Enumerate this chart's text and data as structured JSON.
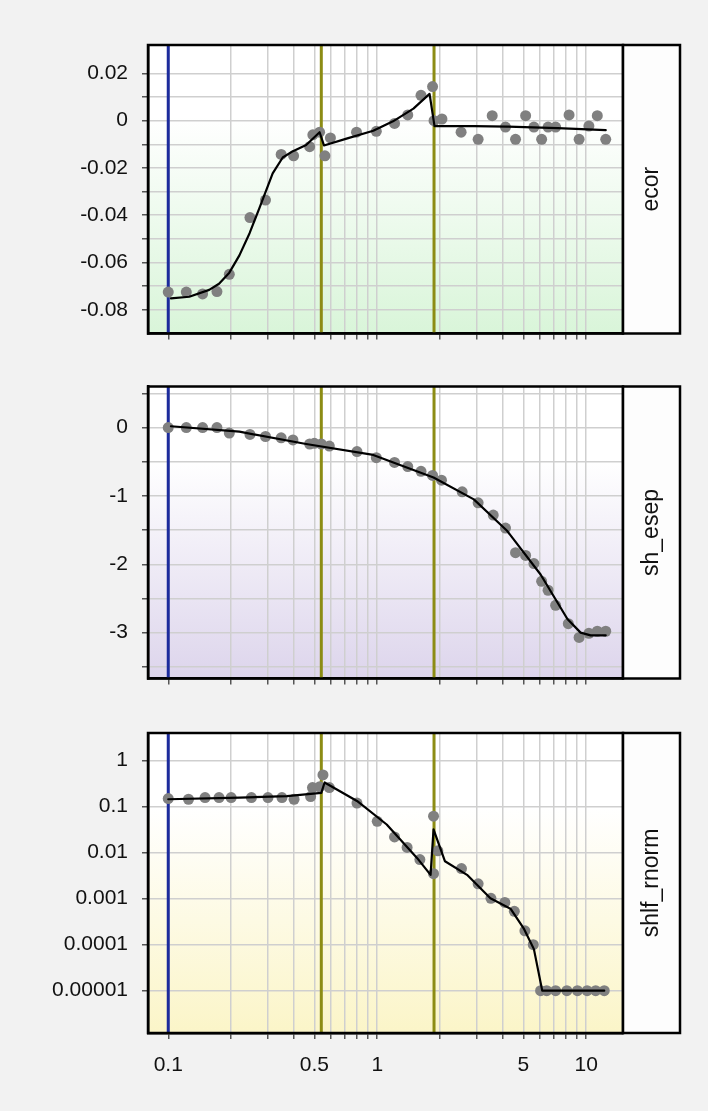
{
  "chart_data": [
    {
      "type": "scatter",
      "y2label": "ecor",
      "log": "x",
      "grid": true,
      "legend": false,
      "tick_labels": "y",
      "xlim": [
        0.08,
        15
      ],
      "xticks": [
        0.1,
        {
          "value": 0.2,
          "label": null
        },
        {
          "value": 0.3,
          "label": null
        },
        {
          "value": 0.4,
          "label": null
        },
        0.5,
        {
          "value": 0.6,
          "label": null
        },
        {
          "value": 0.7,
          "label": null
        },
        {
          "value": 0.8,
          "label": null
        },
        {
          "value": 0.9,
          "label": null
        },
        1,
        {
          "value": 2,
          "label": null
        },
        {
          "value": 3,
          "label": null
        },
        {
          "value": 4,
          "label": null
        },
        5,
        {
          "value": 6,
          "label": null
        },
        {
          "value": 7,
          "label": null
        },
        {
          "value": 8,
          "label": null
        },
        {
          "value": 9,
          "label": null
        },
        10
      ],
      "ylim": [
        -0.09,
        0.032
      ],
      "yticks": [
        0.02,
        {
          "value": 0.01,
          "label": null
        },
        0,
        {
          "value": -0.01,
          "label": null
        },
        -0.02,
        {
          "value": -0.03,
          "label": null
        },
        -0.04,
        {
          "value": -0.05,
          "label": null
        },
        -0.06,
        {
          "value": -0.07,
          "label": null
        },
        -0.08
      ],
      "ref_lines": [
        {
          "axis": "x",
          "value": 0.1,
          "color": "#1c2b9c"
        },
        {
          "axis": "x",
          "value": 0.54,
          "color": "#8c8c14"
        },
        {
          "axis": "x",
          "value": 1.87,
          "color": "#8c8c14"
        }
      ],
      "series": [
        {
          "type": "scatter",
          "color": "#808080",
          "marker": "circle",
          "x": [
            0.1,
            0.122,
            0.146,
            0.171,
            0.196,
            0.246,
            0.292,
            0.347,
            0.398,
            0.475,
            0.492,
            0.53,
            0.562,
            0.597,
            0.796,
            0.99,
            1.21,
            1.4,
            1.62,
            1.84,
            1.87,
            2.04,
            2.52,
            3.04,
            3.55,
            4.11,
            4.59,
            5.13,
            5.62,
            6.12,
            6.57,
            7.14,
            8.28,
            9.25,
            10.3,
            11.3,
            12.4
          ],
          "values": [
            -0.0725,
            -0.0725,
            -0.0733,
            -0.0723,
            -0.065,
            -0.041,
            -0.0336,
            -0.0143,
            -0.0149,
            -0.011,
            -0.006,
            -0.0049,
            -0.0149,
            -0.0073,
            -0.0049,
            -0.0045,
            -0.0012,
            0.0024,
            0.0107,
            0.0144,
            0,
            0.0007,
            -0.0049,
            -0.0079,
            0.0021,
            -0.0027,
            -0.0079,
            0.0021,
            -0.0027,
            -0.0079,
            -0.0027,
            -0.0027,
            0.0024,
            -0.0079,
            -0.0023,
            0.0021,
            -0.0079
          ]
        },
        {
          "type": "line",
          "color": "#000000",
          "marker": "none",
          "x": [
            0.103,
            0.126,
            0.157,
            0.175,
            0.196,
            0.219,
            0.245,
            0.273,
            0.316,
            0.353,
            0.395,
            0.457,
            0.53,
            0.556,
            0.713,
            0.957,
            1.19,
            1.49,
            1.78,
            1.88,
            2.9,
            4.18,
            7.3,
            12.4
          ],
          "values": [
            -0.0752,
            -0.0745,
            -0.0716,
            -0.069,
            -0.0643,
            -0.057,
            -0.0476,
            -0.037,
            -0.0223,
            -0.0156,
            -0.0129,
            -0.0103,
            -0.0049,
            -0.0105,
            -0.0076,
            -0.0043,
            -0.0003,
            0.0051,
            0.0113,
            -0.0023,
            -0.0023,
            -0.0025,
            -0.0032,
            -0.004
          ]
        }
      ]
    },
    {
      "type": "scatter",
      "y2label": "sh_esep",
      "log": "x",
      "grid": true,
      "legend": false,
      "tick_labels": "y",
      "xlim": [
        0.08,
        15
      ],
      "xticks": [
        0.1,
        {
          "value": 0.2,
          "label": null
        },
        {
          "value": 0.3,
          "label": null
        },
        {
          "value": 0.4,
          "label": null
        },
        0.5,
        {
          "value": 0.6,
          "label": null
        },
        {
          "value": 0.7,
          "label": null
        },
        {
          "value": 0.8,
          "label": null
        },
        {
          "value": 0.9,
          "label": null
        },
        1,
        {
          "value": 2,
          "label": null
        },
        {
          "value": 3,
          "label": null
        },
        {
          "value": 4,
          "label": null
        },
        5,
        {
          "value": 6,
          "label": null
        },
        {
          "value": 7,
          "label": null
        },
        {
          "value": 8,
          "label": null
        },
        {
          "value": 9,
          "label": null
        },
        10
      ],
      "ylim": [
        -3.67,
        0.6
      ],
      "yticks": [
        {
          "value": 0.5,
          "label": null
        },
        0,
        {
          "value": -0.5,
          "label": null
        },
        -1,
        {
          "value": -1.5,
          "label": null
        },
        -2,
        {
          "value": -2.5,
          "label": null
        },
        -3,
        {
          "value": -3.5,
          "label": null
        }
      ],
      "ref_lines": [
        {
          "axis": "x",
          "value": 0.1,
          "color": "#1c2b9c"
        },
        {
          "axis": "x",
          "value": 0.54,
          "color": "#8c8c14"
        },
        {
          "axis": "x",
          "value": 1.87,
          "color": "#8c8c14"
        }
      ],
      "series": [
        {
          "type": "scatter",
          "color": "#808080",
          "marker": "circle",
          "x": [
            0.1,
            0.122,
            0.146,
            0.171,
            0.196,
            0.246,
            0.292,
            0.347,
            0.395,
            0.475,
            0.5,
            0.54,
            0.59,
            0.8,
            0.99,
            1.21,
            1.4,
            1.62,
            1.84,
            2.03,
            2.55,
            3.04,
            3.59,
            4.11,
            4.59,
            5.13,
            5.62,
            6.12,
            6.57,
            7.14,
            8.21,
            9.25,
            10.3,
            11.3,
            12.4
          ],
          "values": [
            0,
            0,
            0,
            0,
            -0.08,
            -0.1,
            -0.13,
            -0.15,
            -0.18,
            -0.24,
            -0.23,
            -0.24,
            -0.27,
            -0.35,
            -0.44,
            -0.51,
            -0.57,
            -0.64,
            -0.7,
            -0.77,
            -0.94,
            -1.1,
            -1.28,
            -1.47,
            -1.83,
            -1.87,
            -1.99,
            -2.25,
            -2.38,
            -2.6,
            -2.87,
            -3.07,
            -3.01,
            -2.98,
            -2.98
          ]
        },
        {
          "type": "line",
          "color": "#000000",
          "marker": "none",
          "x": [
            0.103,
            0.219,
            0.457,
            0.957,
            1.86,
            2.9,
            4.18,
            6.05,
            8.13,
            9.4,
            10.5,
            12.4
          ],
          "values": [
            0.02,
            -0.06,
            -0.24,
            -0.4,
            -0.73,
            -1.05,
            -1.51,
            -2.15,
            -2.8,
            -3.0,
            -3.04,
            -3.04
          ]
        }
      ]
    },
    {
      "type": "scatter",
      "y2label": "shlf_rnorm",
      "log": "xy",
      "grid": true,
      "legend": false,
      "xlim": [
        0.08,
        15
      ],
      "xticks": [
        0.1,
        {
          "value": 0.2,
          "label": null
        },
        {
          "value": 0.3,
          "label": null
        },
        {
          "value": 0.4,
          "label": null
        },
        0.5,
        {
          "value": 0.6,
          "label": null
        },
        {
          "value": 0.7,
          "label": null
        },
        {
          "value": 0.8,
          "label": null
        },
        {
          "value": 0.9,
          "label": null
        },
        1,
        {
          "value": 2,
          "label": null
        },
        {
          "value": 3,
          "label": null
        },
        {
          "value": 4,
          "label": null
        },
        5,
        {
          "value": 6,
          "label": null
        },
        {
          "value": 7,
          "label": null
        },
        {
          "value": 8,
          "label": null
        },
        {
          "value": 9,
          "label": null
        },
        10
      ],
      "ylim": [
        1.2e-06,
        4
      ],
      "yticks": [
        1,
        0.1,
        0.01,
        0.001,
        0.0001,
        {
          "value": 1e-05,
          "label": "0.00001"
        }
      ],
      "ref_lines": [
        {
          "axis": "x",
          "value": 0.1,
          "color": "#1c2b9c"
        },
        {
          "axis": "x",
          "value": 0.54,
          "color": "#8c8c14"
        },
        {
          "axis": "x",
          "value": 1.87,
          "color": "#8c8c14"
        }
      ],
      "series": [
        {
          "type": "scatter",
          "color": "#808080",
          "marker": "circle",
          "x": [
            0.1,
            0.125,
            0.15,
            0.175,
            0.2,
            0.25,
            0.3,
            0.35,
            0.4,
            0.48,
            0.49,
            0.53,
            0.55,
            0.59,
            0.8,
            1.0,
            1.21,
            1.39,
            1.6,
            1.86,
            1.86,
            1.95,
            2.53,
            3.04,
            3.5,
            4.08,
            4.53,
            5.09,
            5.58,
            6.05,
            6.47,
            7.14,
            8.08,
            9.08,
            10.1,
            11.1,
            12.2
          ],
          "values": [
            0.15,
            0.145,
            0.158,
            0.158,
            0.158,
            0.158,
            0.158,
            0.158,
            0.145,
            0.166,
            0.26,
            0.27,
            0.49,
            0.26,
            0.12,
            0.048,
            0.022,
            0.013,
            0.0071,
            0.062,
            0.0035,
            0.011,
            0.0045,
            0.0021,
            0.00102,
            0.00083,
            0.00053,
            0.0002,
            0.0001,
            1e-05,
            1e-05,
            1e-05,
            1e-05,
            1e-05,
            1e-05,
            1e-05,
            1e-05
          ]
        },
        {
          "type": "line",
          "color": "#000000",
          "marker": "none",
          "x": [
            0.1,
            0.22,
            0.37,
            0.54,
            0.56,
            0.8,
            1.11,
            1.55,
            1.8,
            1.86,
            2.11,
            2.69,
            3.48,
            4.35,
            5.04,
            5.62,
            6.16,
            12.2
          ],
          "values": [
            0.145,
            0.158,
            0.17,
            0.2,
            0.336,
            0.133,
            0.041,
            0.0077,
            0.0033,
            0.032,
            0.0065,
            0.0033,
            0.00102,
            0.0006,
            0.00022,
            8e-05,
            1e-05,
            1e-05
          ]
        }
      ]
    }
  ]
}
